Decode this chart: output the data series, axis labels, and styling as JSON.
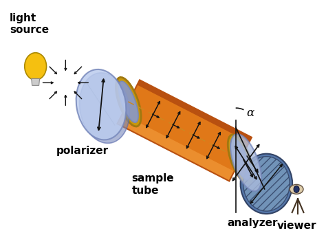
{
  "bg_color": "#ffffff",
  "labels": {
    "light_source": "light\nsource",
    "polarizer": "polarizer",
    "sample_tube": "sample\ntube",
    "analyzer": "analyzer",
    "viewer": "viewer",
    "alpha": "α"
  },
  "colors": {
    "bulb_yellow": "#F5C010",
    "polarizer_face": "#99AACC",
    "polarizer_edge": "#7788BB",
    "polarizer_light": "#BBCCEE",
    "tube_orange": "#E07818",
    "tube_highlight": "#F09838",
    "tube_shadow": "#B85010",
    "tube_ring": "#C8980C",
    "tube_ring_dark": "#A07810",
    "end_cap_blue": "#8899CC",
    "end_cap_light": "#AABBDD",
    "analyzer_face": "#7799BB",
    "analyzer_dark": "#5577AA",
    "arrow_color": "#111111",
    "text_color": "#000000",
    "dashed_line": "#CC8820"
  },
  "figsize": [
    4.74,
    3.55
  ],
  "dpi": 100
}
